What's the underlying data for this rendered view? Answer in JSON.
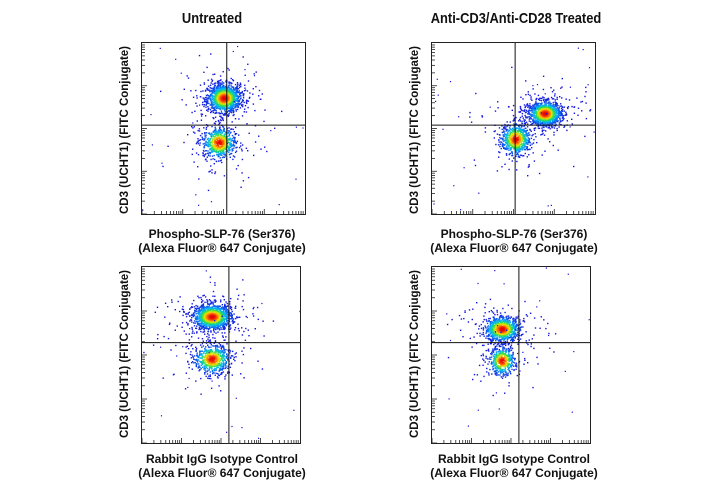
{
  "chart_data": {
    "type": "scatter",
    "column_titles": [
      "Untreated",
      "Anti-CD3/Anti-CD28 Treated"
    ],
    "ylabel": "CD3 (UCHT1) (FITC Conjugate)",
    "xlim": [
      0,
      100
    ],
    "ylim": [
      0,
      100
    ],
    "panels": [
      {
        "name": "untreated-phospho",
        "column": "Untreated",
        "xlabel_line1": "Phospho-SLP-76 (Ser376)",
        "xlabel_line2": "(Alexa Fluor® 647 Conjugate)",
        "gate": {
          "x": 52,
          "y": 52
        },
        "populations": [
          {
            "label": "CD3 high",
            "cx": 50,
            "cy": 68,
            "sx": 5,
            "sy": 4,
            "n": 1400
          },
          {
            "label": "CD3 low",
            "cx": 47,
            "cy": 42,
            "sx": 5,
            "sy": 4.5,
            "n": 700
          }
        ]
      },
      {
        "name": "treated-phospho",
        "column": "Anti-CD3/Anti-CD28 Treated",
        "xlabel_line1": "Phospho-SLP-76 (Ser376)",
        "xlabel_line2": "(Alexa Fluor® 647 Conjugate)",
        "gate": {
          "x": 51,
          "y": 52
        },
        "populations": [
          {
            "label": "CD3 high",
            "cx": 69,
            "cy": 59,
            "sx": 5,
            "sy": 3.5,
            "n": 1300
          },
          {
            "label": "CD3 low",
            "cx": 51,
            "cy": 44,
            "sx": 4.5,
            "sy": 4.5,
            "n": 700
          }
        ]
      },
      {
        "name": "untreated-isotype",
        "column": "Untreated",
        "xlabel_line1": "Rabbit IgG Isotype Control",
        "xlabel_line2": "(Alexa Fluor® 647 Conjugate)",
        "gate": {
          "x": 55,
          "y": 57
        },
        "populations": [
          {
            "label": "CD3 high",
            "cx": 44,
            "cy": 72,
            "sx": 6,
            "sy": 3.5,
            "n": 1400
          },
          {
            "label": "CD3 low",
            "cx": 44,
            "cy": 48,
            "sx": 5.5,
            "sy": 4,
            "n": 700
          }
        ]
      },
      {
        "name": "treated-isotype",
        "column": "Anti-CD3/Anti-CD28 Treated",
        "xlabel_line1": "Rabbit IgG Isotype Control",
        "xlabel_line2": "(Alexa Fluor® 647 Conjugate)",
        "gate": {
          "x": 55,
          "y": 57
        },
        "populations": [
          {
            "label": "CD3 high",
            "cx": 44,
            "cy": 65,
            "sx": 5.5,
            "sy": 3.5,
            "n": 1000
          },
          {
            "label": "CD3 low",
            "cx": 44,
            "cy": 47,
            "sx": 4,
            "sy": 4,
            "n": 500
          }
        ]
      }
    ]
  }
}
